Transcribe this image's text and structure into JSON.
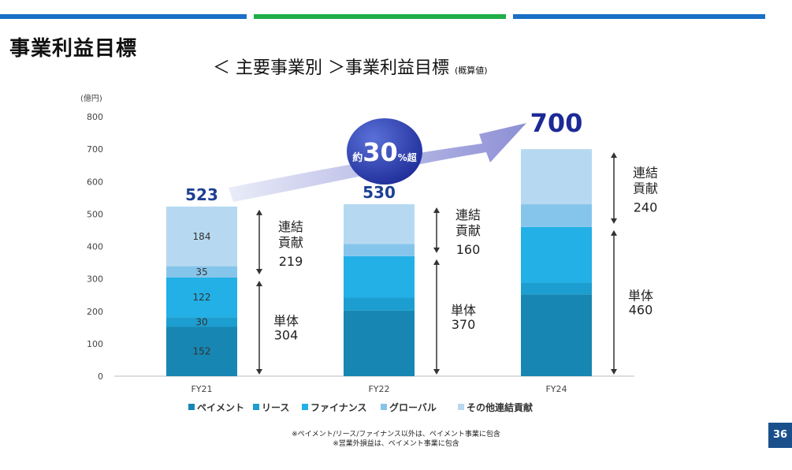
{
  "header": {
    "title": "事業利益目標",
    "bar_colors": [
      "#1a6fc7",
      "#1fae4a",
      "#1a6fc7"
    ]
  },
  "chart_title": {
    "main": "＜ 主要事業別 ＞事業利益目標",
    "sub": "(概算値)"
  },
  "chart_data": {
    "type": "bar",
    "stacked": true,
    "unit_label": "(億円)",
    "categories": [
      "FY21",
      "FY22",
      "FY24"
    ],
    "ylim": [
      0,
      800
    ],
    "yticks": [
      0,
      100,
      200,
      300,
      400,
      500,
      600,
      700,
      800
    ],
    "series": [
      {
        "name": "ペイメント",
        "color": "#1786b2",
        "values": [
          152,
          202,
          252
        ],
        "labels": [
          "152",
          null,
          null
        ]
      },
      {
        "name": "リース",
        "color": "#1d9ed0",
        "values": [
          30,
          40,
          36
        ],
        "labels": [
          "30",
          null,
          null
        ]
      },
      {
        "name": "ファイナンス",
        "color": "#22b0e6",
        "values": [
          122,
          128,
          172
        ],
        "labels": [
          "122",
          null,
          null
        ]
      },
      {
        "name": "グローバル",
        "color": "#86c5eb",
        "values": [
          35,
          38,
          70
        ],
        "labels": [
          "35",
          null,
          null
        ]
      },
      {
        "name": "その他連結貢献",
        "color": "#b6d9f1",
        "values": [
          184,
          122,
          170
        ],
        "labels": [
          "184",
          null,
          null
        ]
      }
    ],
    "totals": [
      "523",
      "530",
      "700"
    ],
    "annotations": [
      {
        "category": "FY21",
        "upper": {
          "l1": "連結",
          "l2": "貢献",
          "value": "219"
        },
        "lower": {
          "l1": "単体",
          "value": "304"
        }
      },
      {
        "category": "FY22",
        "upper": {
          "l1": "連結",
          "l2": "貢献",
          "value": "160"
        },
        "lower": {
          "l1": "単体",
          "value": "370"
        }
      },
      {
        "category": "FY24",
        "upper": {
          "l1": "連結",
          "l2": "貢献",
          "value": "240"
        },
        "lower": {
          "l1": "単体",
          "value": "460"
        }
      }
    ],
    "growth_badge": {
      "prefix": "約",
      "number": "30",
      "suffix": "%超"
    },
    "legend_position": "bottom",
    "grid": false
  },
  "notes": [
    "※ペイメント/リース/ファイナンス以外は、ペイメント事業に包含",
    "※営業外損益は、ペイメント事業に包含"
  ],
  "page_number": "36"
}
